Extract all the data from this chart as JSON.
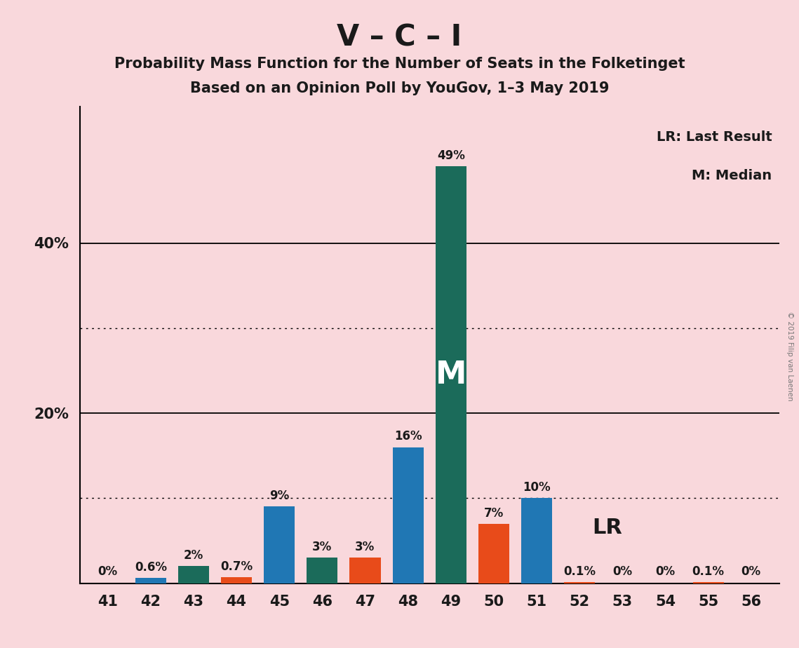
{
  "title1": "V – C – I",
  "title2": "Probability Mass Function for the Number of Seats in the Folketinget",
  "title3": "Based on an Opinion Poll by YouGov, 1–3 May 2019",
  "copyright": "© 2019 Filip van Laenen",
  "seats": [
    41,
    42,
    43,
    44,
    45,
    46,
    47,
    48,
    49,
    50,
    51,
    52,
    53,
    54,
    55,
    56
  ],
  "values": [
    0.0,
    0.6,
    2.0,
    0.7,
    9.0,
    3.0,
    3.0,
    16.0,
    49.0,
    7.0,
    10.0,
    0.1,
    0.0,
    0.0,
    0.1,
    0.0
  ],
  "labels": [
    "0%",
    "0.6%",
    "2%",
    "0.7%",
    "9%",
    "3%",
    "3%",
    "16%",
    "49%",
    "7%",
    "10%",
    "0.1%",
    "0%",
    "0%",
    "0.1%",
    "0%"
  ],
  "bar_colors": [
    "#2077B4",
    "#2077B4",
    "#1B6B5A",
    "#E84B1A",
    "#2077B4",
    "#1B6B5A",
    "#E84B1A",
    "#2077B4",
    "#1B6B5A",
    "#E84B1A",
    "#2077B4",
    "#E84B1A",
    "#2077B4",
    "#1B6B5A",
    "#E84B1A",
    "#2077B4"
  ],
  "background_color": "#F9D8DC",
  "text_color": "#1A1A1A",
  "median_seat": 49,
  "lr_seat": 50,
  "legend_text1": "LR: Last Result",
  "legend_text2": "M: Median",
  "lr_label": "LR",
  "median_label": "M",
  "ylim": [
    0,
    56
  ],
  "solid_lines": [
    20,
    40
  ],
  "dotted_lines": [
    10,
    30
  ],
  "ytick_labels": {
    "20": "20%",
    "40": "40%"
  },
  "title1_fontsize": 30,
  "title2_fontsize": 15,
  "label_fontsize": 12,
  "tick_fontsize": 15
}
